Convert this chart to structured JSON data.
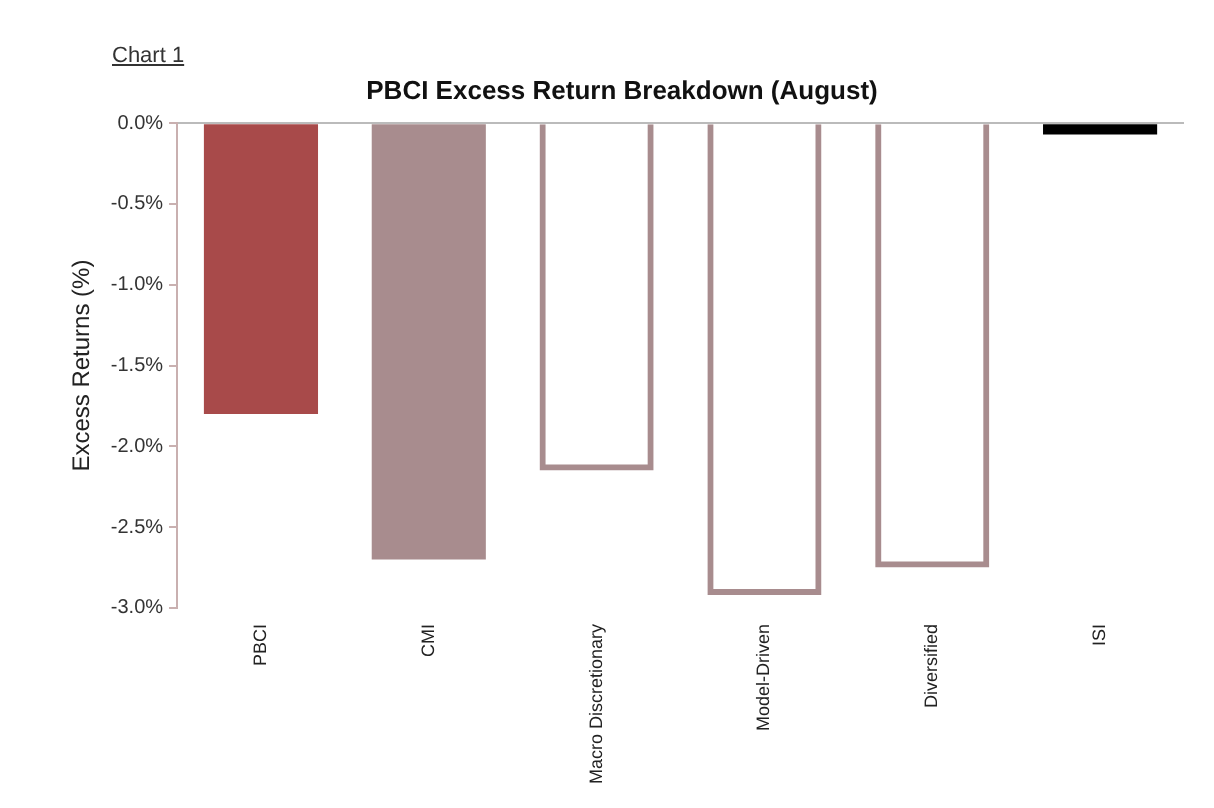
{
  "chart_data": {
    "type": "bar",
    "title": "PBCI Excess Return Breakdown (August)",
    "ylabel": "Excess Returns (%)",
    "annotations": [
      "Chart 1"
    ],
    "categories": [
      "PBCI",
      "CMI",
      "Macro Discretionary",
      "Model-Driven",
      "Diversified",
      "ISI"
    ],
    "series": [
      {
        "values": [
          -1.8,
          -2.7,
          null,
          null,
          null,
          -0.07
        ],
        "colors": [
          "#a84a4a",
          "#a88c8e",
          null,
          null,
          null,
          "#000000"
        ]
      },
      {
        "values": [
          null,
          null,
          -2.15,
          -2.92,
          -2.75,
          null
        ],
        "colors": [
          null,
          null,
          "#a88c8e",
          "#a88c8e",
          "#a88c8e",
          null
        ]
      }
    ],
    "ylim": [
      -3,
      0
    ],
    "yticks": [
      {
        "value": 0,
        "label": "0.0%"
      },
      {
        "value": -0.5,
        "label": "-0.5%"
      },
      {
        "value": -1,
        "label": "-1.0%"
      },
      {
        "value": -1.5,
        "label": "-1.5%"
      },
      {
        "value": -2,
        "label": "-2.0%"
      },
      {
        "value": -2.5,
        "label": "-2.5%"
      },
      {
        "value": -3,
        "label": "-3.0%"
      }
    ],
    "grid": false,
    "legend": false
  }
}
